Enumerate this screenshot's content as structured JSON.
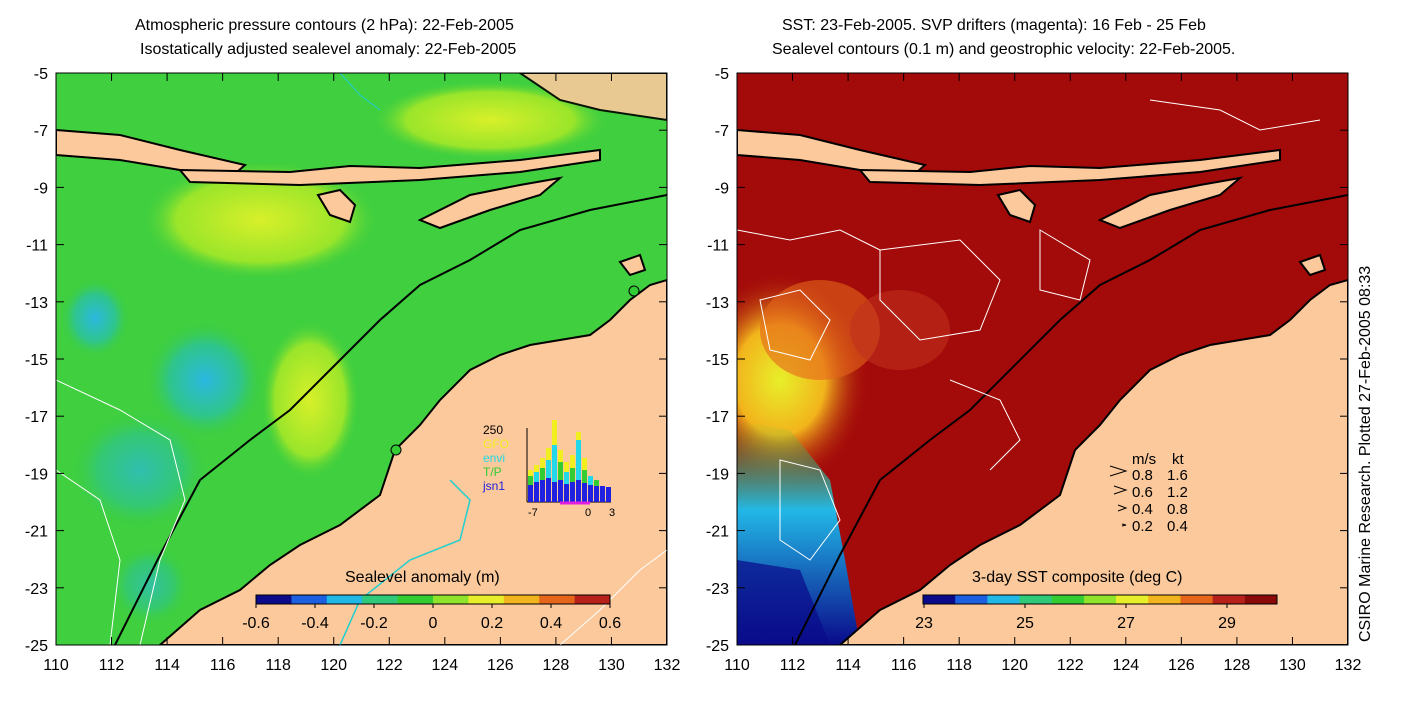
{
  "left_panel": {
    "title_line1": "Atmospheric pressure contours (2 hPa): 22-Feb-2005",
    "title_line2": "Isostatically adjusted sealevel anomaly: 22-Feb-2005",
    "colorbar": {
      "label": "Sealevel anomaly (m)",
      "ticks": [
        "-0.6",
        "-0.4",
        "-0.2",
        "0",
        "0.2",
        "0.4",
        "0.6"
      ],
      "colors": [
        "#0a0a8a",
        "#1c5fe0",
        "#22b8e6",
        "#2fc97a",
        "#33cc33",
        "#8fe32a",
        "#e8ef2a",
        "#f2b41c",
        "#e5661a",
        "#b8201a"
      ]
    },
    "inset": {
      "ylabel": "250",
      "legend": [
        "GFO",
        "envi",
        "T/P",
        "jsn1"
      ],
      "legend_colors": [
        "#f2ef20",
        "#22d8e8",
        "#33cc33",
        "#2020e0"
      ],
      "xticks": [
        "-7",
        "0",
        "3"
      ]
    }
  },
  "right_panel": {
    "title_line1": "SST: 23-Feb-2005. SVP drifters (magenta): 16 Feb - 25 Feb",
    "title_line2": "Sealevel contours (0.1 m) and geostrophic velocity: 22-Feb-2005.",
    "colorbar": {
      "label": "3-day SST composite (deg C)",
      "ticks": [
        "23",
        "25",
        "27",
        "29"
      ],
      "colors": [
        "#0a0a8a",
        "#1c5fe0",
        "#22b8e6",
        "#2fc97a",
        "#33cc33",
        "#8fe32a",
        "#e8ef2a",
        "#f2b41c",
        "#e5661a",
        "#b8201a",
        "#8a0a0a"
      ]
    },
    "speed_legend": {
      "header_ms": "m/s",
      "header_kt": "kt",
      "rows": [
        {
          "ms": "0.8",
          "kt": "1.6"
        },
        {
          "ms": "0.6",
          "kt": "1.2"
        },
        {
          "ms": "0.4",
          "kt": "0.8"
        },
        {
          "ms": "0.2",
          "kt": "0.4"
        }
      ]
    }
  },
  "axes": {
    "x_ticks": [
      "110",
      "112",
      "114",
      "116",
      "118",
      "120",
      "122",
      "124",
      "126",
      "128",
      "130",
      "132"
    ],
    "y_ticks": [
      "-5",
      "-7",
      "-9",
      "-11",
      "-13",
      "-15",
      "-17",
      "-19",
      "-21",
      "-23",
      "-25"
    ],
    "x_range": [
      110,
      132
    ],
    "y_range": [
      -25,
      -5
    ]
  },
  "side_label": "CSIRO Marine Research. Plotted 27-Feb-2005 08:33",
  "colors": {
    "land": "#fbc99b",
    "sea_left": "#3fcf3f",
    "sea_right": "#a30a0a",
    "coast": "#000000"
  }
}
